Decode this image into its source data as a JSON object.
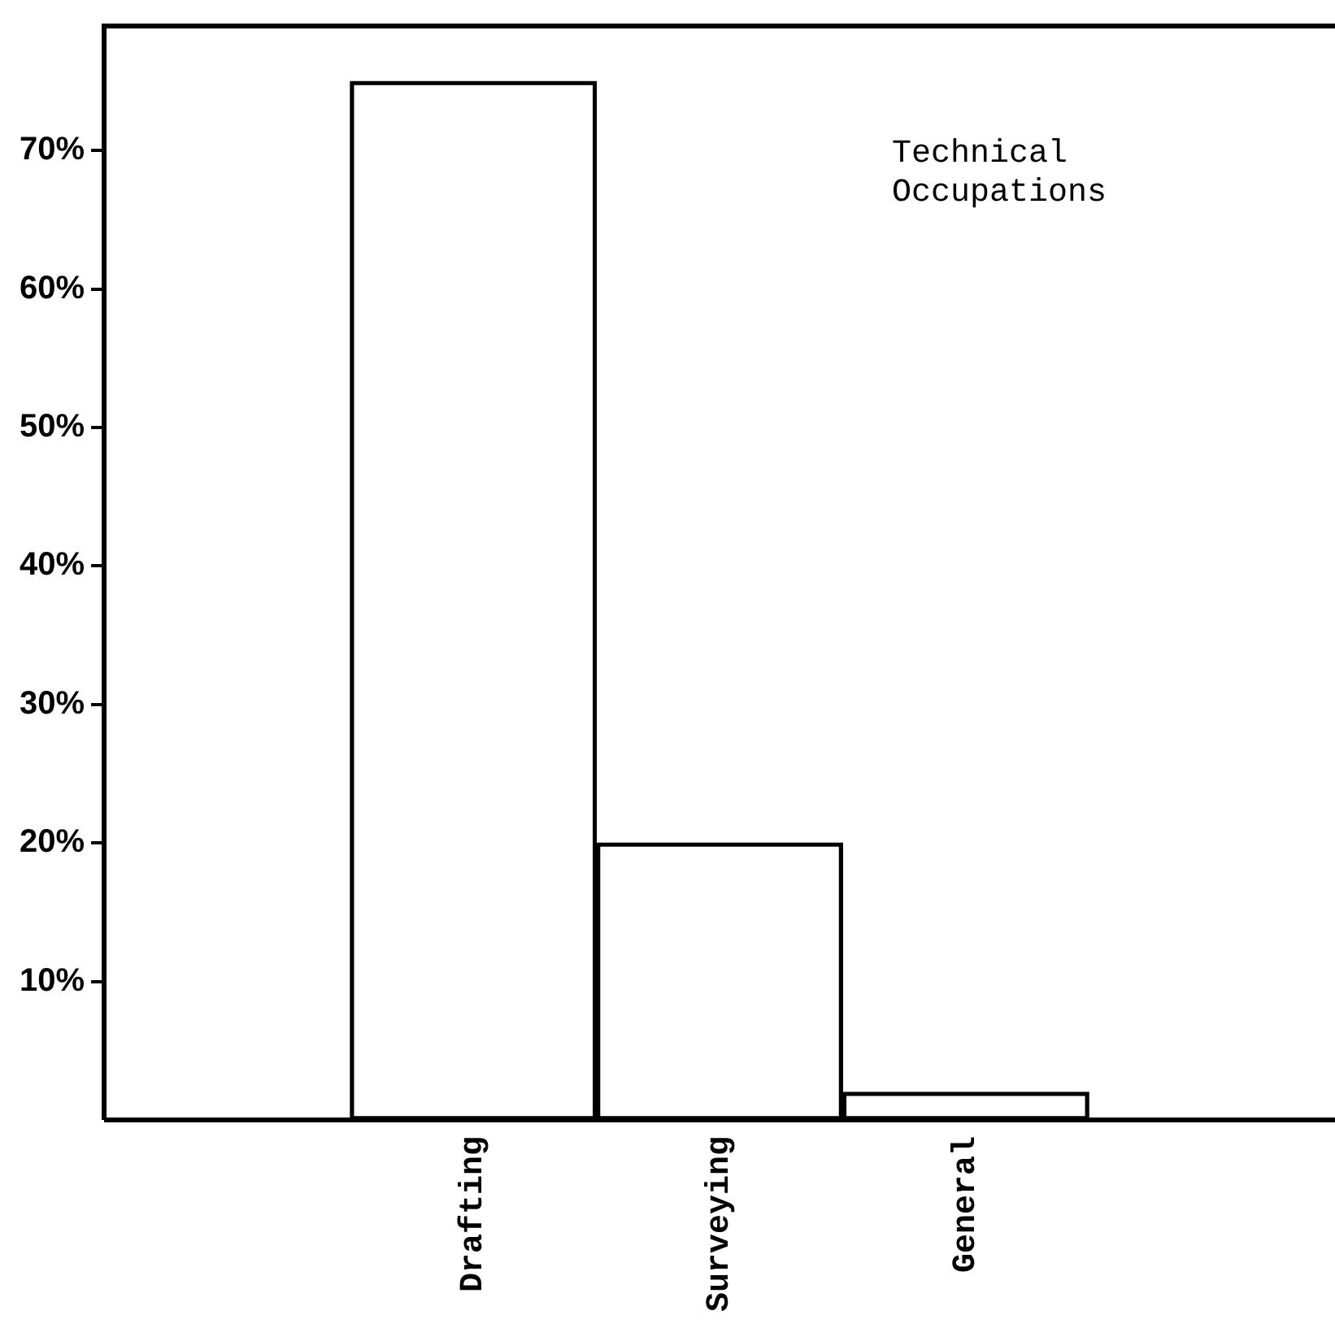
{
  "chart_data": {
    "type": "bar",
    "categories": [
      null,
      "Drafting",
      "Surveying",
      "General",
      null
    ],
    "values": [
      null,
      75,
      20,
      2,
      null
    ],
    "color": "#000000",
    "ylim": [
      0,
      79
    ],
    "yticks": [
      {
        "value": 10,
        "label": "10%"
      },
      {
        "value": 20,
        "label": "20%"
      },
      {
        "value": 30,
        "label": "30%"
      },
      {
        "value": 40,
        "label": "40%"
      },
      {
        "value": 50,
        "label": "50%"
      },
      {
        "value": 60,
        "label": "60%"
      },
      {
        "value": 70,
        "label": "70%"
      }
    ],
    "grid": false,
    "legend": false,
    "annotations": [
      "Technical\nOccupations"
    ]
  }
}
